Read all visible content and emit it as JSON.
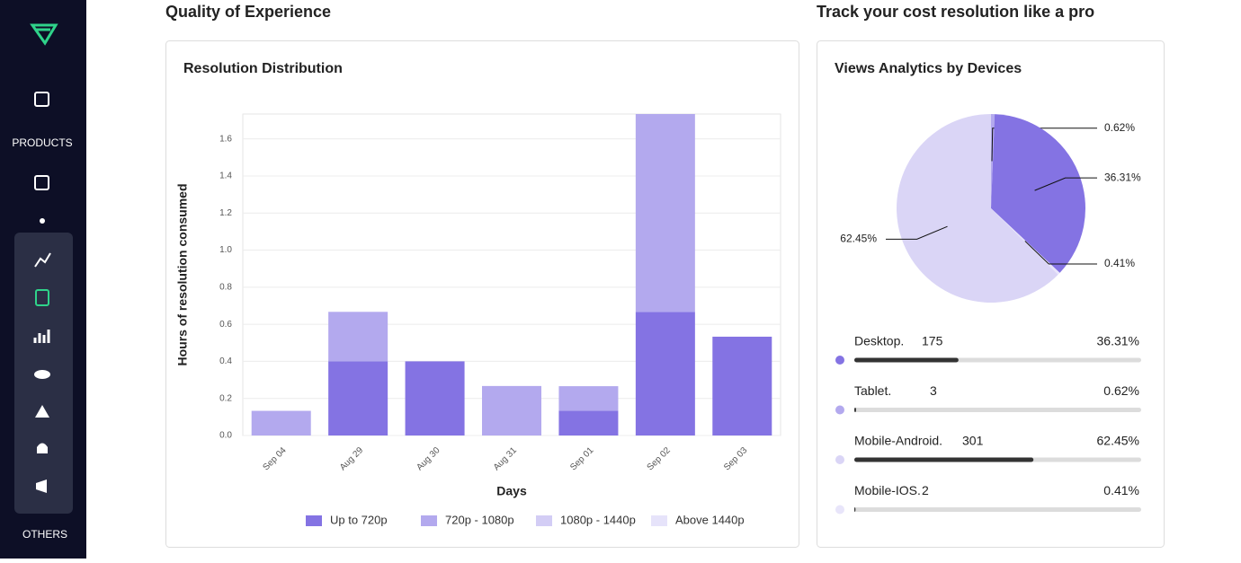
{
  "sidebar": {
    "products_label": "PRODUCTS",
    "others_label": "OTHERS"
  },
  "headings": {
    "left": "Quality of Experience",
    "right": "Track your cost resolution like a pro"
  },
  "chart_data": [
    {
      "type": "bar",
      "stacked": true,
      "title": "Resolution Distribution",
      "x_label": "Days",
      "y_label": "Hours of resolution consumed",
      "categories": [
        "Sep 04",
        "Aug 29",
        "Aug 30",
        "Aug 31",
        "Sep 01",
        "Sep 02",
        "Sep 03"
      ],
      "series": [
        {
          "name": "Up to 720p",
          "color": "#8473e3",
          "values": [
            0,
            0.4,
            0.4,
            0,
            0.133,
            0.667,
            0.533
          ]
        },
        {
          "name": "720p - 1080p",
          "color": "#b3a9ee",
          "values": [
            0.133,
            0.267,
            0,
            0.267,
            0.133,
            1.067,
            0
          ]
        },
        {
          "name": "1080p - 1440p",
          "color": "#d3cdf5",
          "values": [
            0,
            0,
            0,
            0,
            0,
            0,
            0
          ]
        },
        {
          "name": "Above 1440p",
          "color": "#e6e3fa",
          "values": [
            0,
            0,
            0,
            0,
            0,
            0,
            0
          ]
        }
      ],
      "ylim": [
        0,
        1.734
      ],
      "yticks": [
        {
          "value": 0,
          "label": "0.0"
        },
        0.2,
        0.4,
        0.6,
        0.8,
        {
          "value": 1,
          "label": "1.0"
        },
        1.2,
        1.4,
        1.6
      ],
      "grid": true,
      "legend": "bottom"
    },
    {
      "type": "pie",
      "title": "Views Analytics by Devices",
      "categories": [
        "Tablet",
        "Desktop",
        "Mobile-IOS",
        "Mobile-Android"
      ],
      "values": [
        0.62,
        36.31,
        0.41,
        62.45
      ],
      "value_labels": [
        "0.62%",
        "36.31%",
        "0.41%",
        "62.45%"
      ],
      "colors": [
        "#b3a9ee",
        "#8473e3",
        "#e8e5fa",
        "#dad5f6"
      ]
    }
  ],
  "device_list": [
    {
      "name": "Desktop.",
      "count": 175,
      "percent": 36.31,
      "percent_label": "36.31%",
      "color": "#8473e3"
    },
    {
      "name": "Tablet.",
      "count": 3,
      "percent": 0.62,
      "percent_label": "0.62%",
      "color": "#b3a9ee"
    },
    {
      "name": "Mobile-Android.",
      "count": 301,
      "percent": 62.45,
      "percent_label": "62.45%",
      "color": "#dad5f6"
    },
    {
      "name": "Mobile-IOS.",
      "count": 2,
      "percent": 0.41,
      "percent_label": "0.41%",
      "color": "#e8e5fa"
    }
  ]
}
